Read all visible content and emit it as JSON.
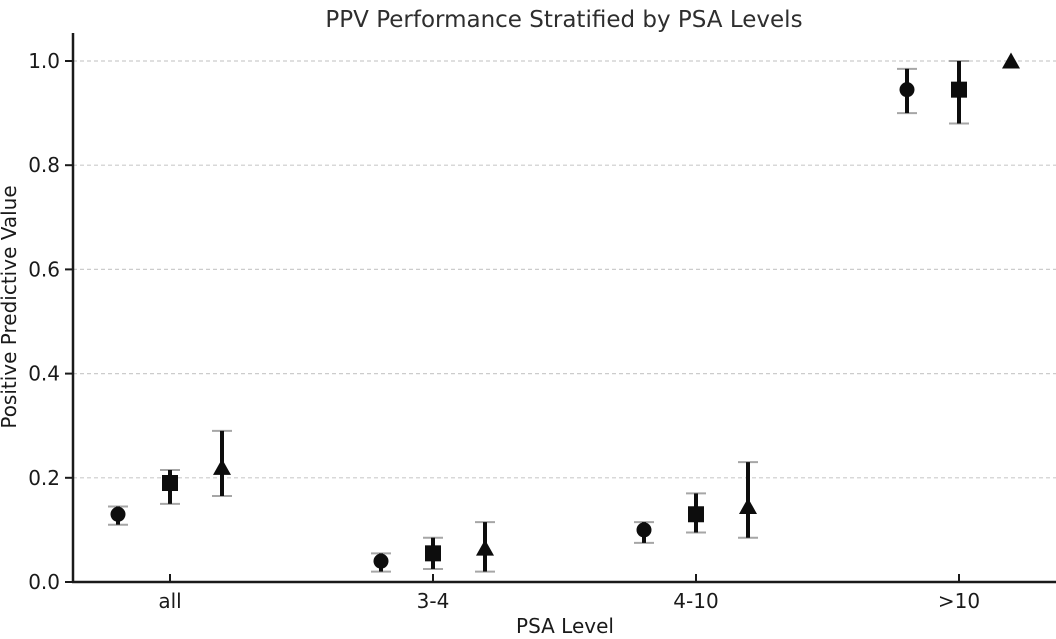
{
  "chart_data": {
    "type": "scatter",
    "title": "PPV Performance Stratified by PSA Levels",
    "xlabel": "PSA Level",
    "ylabel": "Positive Predictive Value",
    "categories": [
      "all",
      "3-4",
      "4-10",
      ">10"
    ],
    "y_ticks": [
      0.0,
      0.2,
      0.4,
      0.6,
      0.8,
      1.0
    ],
    "ylim": [
      0.0,
      1.05
    ],
    "grid": "horizontal-dashed",
    "legend": "none",
    "series": [
      {
        "name": "circle-series",
        "marker": "circle",
        "values": [
          0.13,
          0.04,
          0.1,
          0.945
        ],
        "ci_low": [
          0.11,
          0.02,
          0.075,
          0.9
        ],
        "ci_high": [
          0.145,
          0.055,
          0.115,
          0.985
        ]
      },
      {
        "name": "square-series",
        "marker": "square",
        "values": [
          0.19,
          0.055,
          0.13,
          0.945
        ],
        "ci_low": [
          0.15,
          0.025,
          0.095,
          0.88
        ],
        "ci_high": [
          0.215,
          0.085,
          0.17,
          1.0
        ]
      },
      {
        "name": "triangle-series",
        "marker": "triangle-up",
        "values": [
          0.22,
          0.065,
          0.145,
          1.0
        ],
        "ci_low": [
          0.165,
          0.02,
          0.085,
          1.0
        ],
        "ci_high": [
          0.29,
          0.115,
          0.23,
          1.0
        ]
      }
    ],
    "colors": {
      "marker": "#0d0d0d",
      "error_bar": "#0d0d0d",
      "error_cap": "#a6a6a6",
      "grid": "#cccccc",
      "spine": "#1a1a1a",
      "text": "#1a1a1a",
      "title": "#2e2e2e",
      "background": "#ffffff"
    }
  }
}
